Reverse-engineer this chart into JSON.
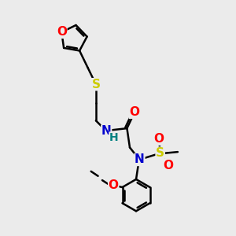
{
  "bg_color": "#ebebeb",
  "atom_colors": {
    "O": "#ff0000",
    "N": "#0000cd",
    "S": "#cccc00",
    "H": "#008080",
    "C": "#000000"
  },
  "bond_color": "#000000",
  "bond_width": 1.8,
  "font_size": 11
}
